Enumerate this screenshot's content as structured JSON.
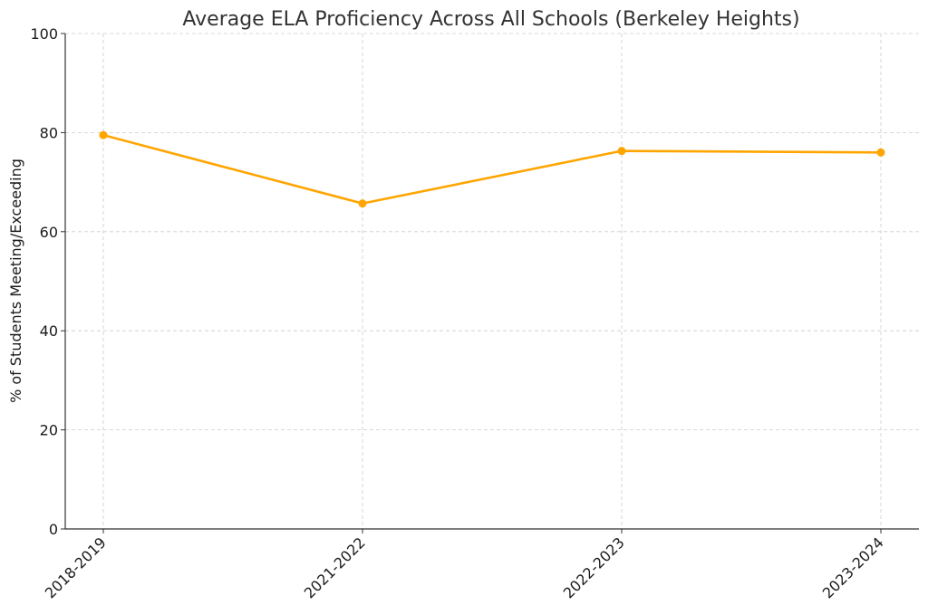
{
  "chart_data": {
    "type": "line",
    "title": "Average ELA Proficiency Across All Schools (Berkeley Heights)",
    "xlabel": "",
    "ylabel": "% of Students Meeting/Exceeding",
    "categories": [
      "2018-2019",
      "2021-2022",
      "2022-2023",
      "2023-2024"
    ],
    "series": [
      {
        "values": [
          79.5,
          65.7,
          76.3,
          76.0
        ],
        "color": "#FFA500"
      }
    ],
    "ylim": [
      0,
      100
    ],
    "yticks": [
      0,
      20,
      40,
      60,
      80,
      100
    ],
    "grid": true,
    "grid_color": "#cccccc",
    "legend": "none"
  }
}
